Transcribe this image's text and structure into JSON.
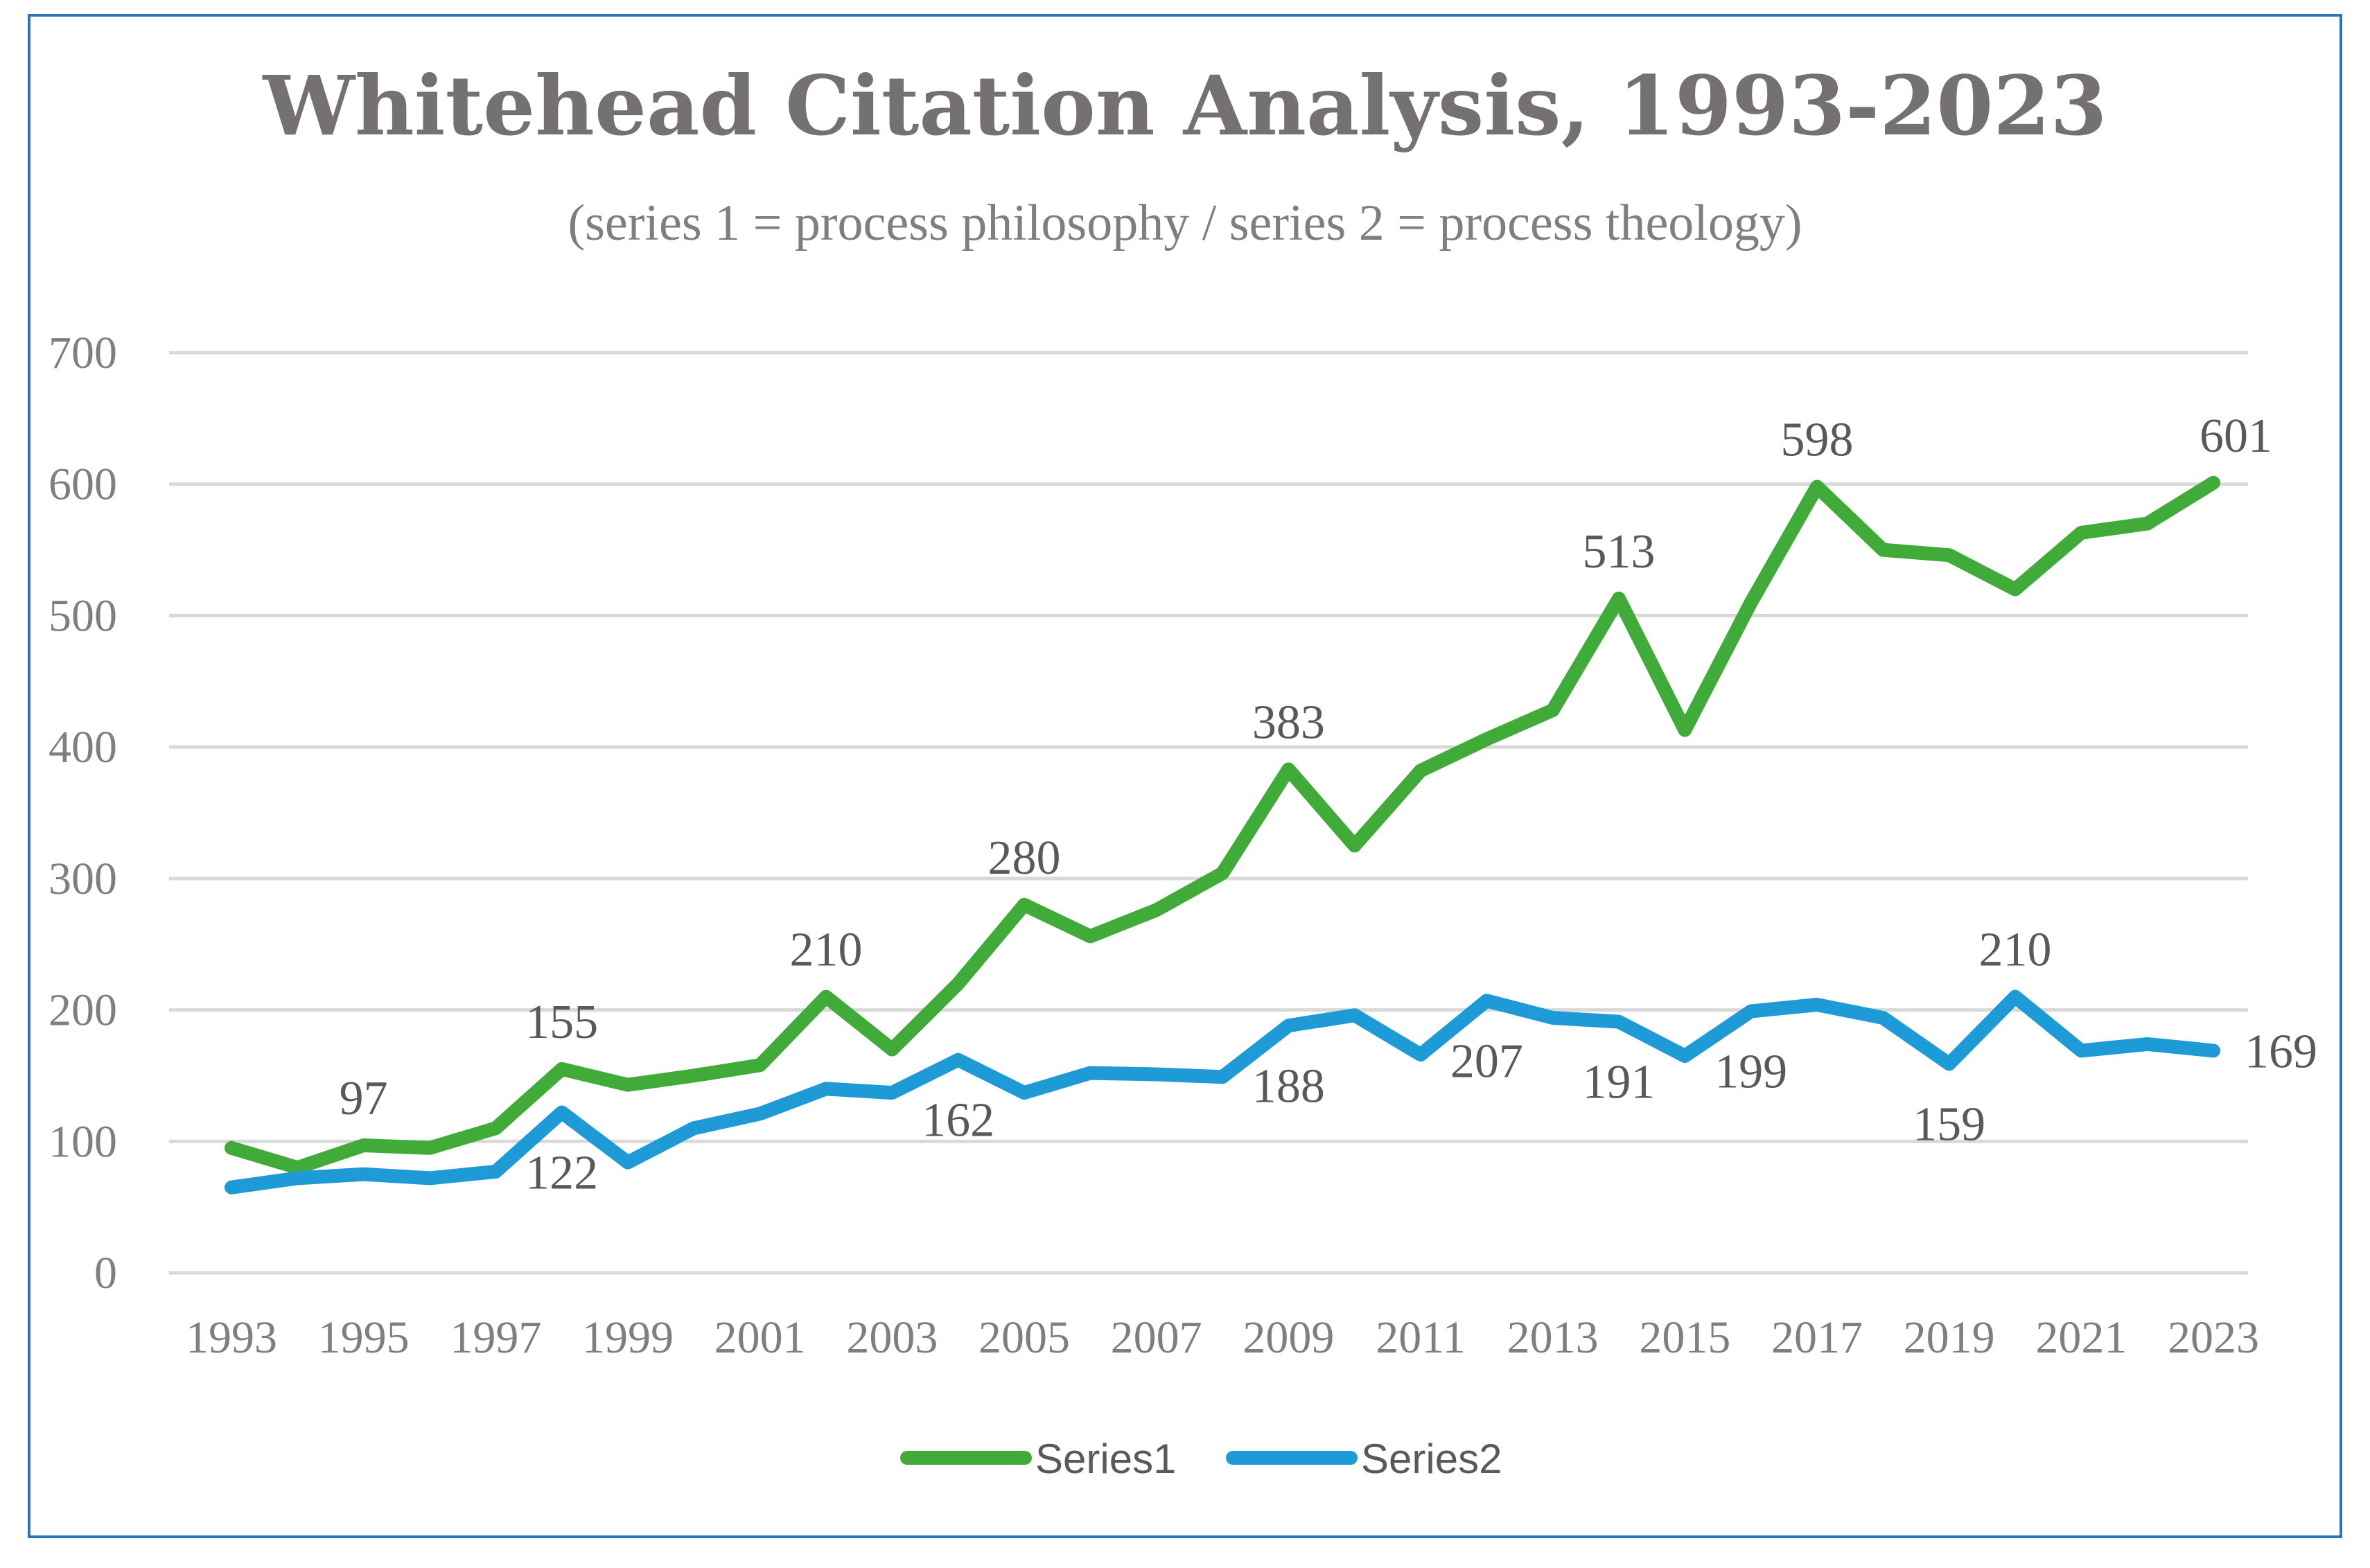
{
  "chart_data": {
    "type": "line",
    "title": "Whitehead Citation Analysis, 1993-2023",
    "subtitle": "(series 1 = process philosophy / series 2 = process theology)",
    "x": [
      1993,
      1994,
      1995,
      1996,
      1997,
      1998,
      1999,
      2000,
      2001,
      2002,
      2003,
      2004,
      2005,
      2006,
      2007,
      2008,
      2009,
      2010,
      2011,
      2012,
      2013,
      2014,
      2015,
      2016,
      2017,
      2018,
      2019,
      2020,
      2021,
      2022,
      2023
    ],
    "x_tick_labels": [
      "1993",
      "1995",
      "1997",
      "1999",
      "2001",
      "2003",
      "2005",
      "2007",
      "2009",
      "2011",
      "2013",
      "2015",
      "2017",
      "2019",
      "2021",
      "2023"
    ],
    "ylim": [
      0,
      700
    ],
    "y_ticks": [
      0,
      100,
      200,
      300,
      400,
      500,
      600,
      700
    ],
    "grid": true,
    "legend": "bottom-center",
    "series": [
      {
        "name": "Series1",
        "color": "#41AB3A",
        "values": [
          95,
          80,
          97,
          95,
          110,
          155,
          143,
          150,
          158,
          210,
          170,
          220,
          280,
          256,
          276,
          304,
          383,
          325,
          382,
          406,
          428,
          513,
          413,
          510,
          598,
          550,
          546,
          520,
          563,
          570,
          601
        ],
        "labels": [
          {
            "index": 2,
            "text": "97",
            "pos": "above"
          },
          {
            "index": 5,
            "text": "155",
            "pos": "above"
          },
          {
            "index": 9,
            "text": "210",
            "pos": "above"
          },
          {
            "index": 12,
            "text": "280",
            "pos": "above"
          },
          {
            "index": 16,
            "text": "383",
            "pos": "above"
          },
          {
            "index": 21,
            "text": "513",
            "pos": "above"
          },
          {
            "index": 24,
            "text": "598",
            "pos": "above"
          },
          {
            "index": 30,
            "text": "601",
            "pos": "above-right"
          }
        ]
      },
      {
        "name": "Series2",
        "color": "#1E9AD6",
        "values": [
          65,
          72,
          75,
          72,
          77,
          122,
          84,
          110,
          121,
          140,
          137,
          162,
          137,
          152,
          151,
          149,
          188,
          196,
          166,
          207,
          194,
          191,
          165,
          199,
          204,
          194,
          159,
          210,
          169,
          174,
          169
        ],
        "labels": [
          {
            "index": 5,
            "text": "122",
            "pos": "below"
          },
          {
            "index": 11,
            "text": "162",
            "pos": "below"
          },
          {
            "index": 16,
            "text": "188",
            "pos": "below"
          },
          {
            "index": 19,
            "text": "207",
            "pos": "below"
          },
          {
            "index": 21,
            "text": "191",
            "pos": "below"
          },
          {
            "index": 23,
            "text": "199",
            "pos": "below"
          },
          {
            "index": 26,
            "text": "159",
            "pos": "below"
          },
          {
            "index": 27,
            "text": "210",
            "pos": "above"
          },
          {
            "index": 30,
            "text": "169",
            "pos": "right"
          }
        ]
      }
    ]
  }
}
